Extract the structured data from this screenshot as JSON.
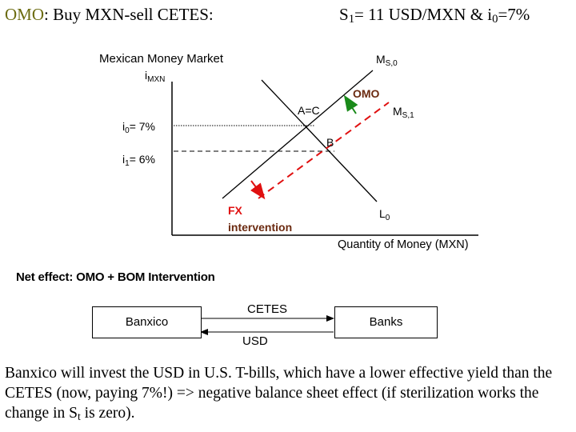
{
  "header": {
    "left_prefix": "OMO",
    "left_rest": ": Buy MXN-sell CETES:",
    "right_S": "S",
    "right_S_sub": "1",
    "right_mid": "= 11 USD/MXN & i",
    "right_i_sub": "0",
    "right_end": "=7%"
  },
  "diagram": {
    "title": "Mexican Money Market",
    "y_axis_label": "i",
    "y_axis_label_sub": "MXN",
    "x_axis_label": "Quantity of Money (MXN)",
    "i0_label": "i",
    "i0_sub": "0",
    "i0_value": "= 7%",
    "i1_label": "i",
    "i1_sub": "1",
    "i1_value": "= 6%",
    "ms0_label": "M",
    "ms0_sub": "S,0",
    "ms1_label": "M",
    "ms1_sub": "S,1",
    "l0_label": "L",
    "l0_sub": "0",
    "point_ac": "A=C",
    "point_b": "B",
    "omo_label": "OMO",
    "fx_label_1": "FX",
    "fx_label_2": "intervention",
    "colors": {
      "omo": "#1a8a1a",
      "fx": "#e01010"
    }
  },
  "net_effect": {
    "label": "Net effect: OMO + BOM Intervention",
    "left_box": "Banxico",
    "right_box": "Banks",
    "top_arrow_label": "CETES",
    "bottom_arrow_label": "USD"
  },
  "bottom": {
    "text_before_sub": "Banxico will invest the USD in U.S. T-bills, which have a lower effective yield than the CETES (now, paying 7%!) => negative balance sheet effect (if sterilization works the change in S",
    "text_sub": "t",
    "text_after_sub": " is zero)."
  }
}
